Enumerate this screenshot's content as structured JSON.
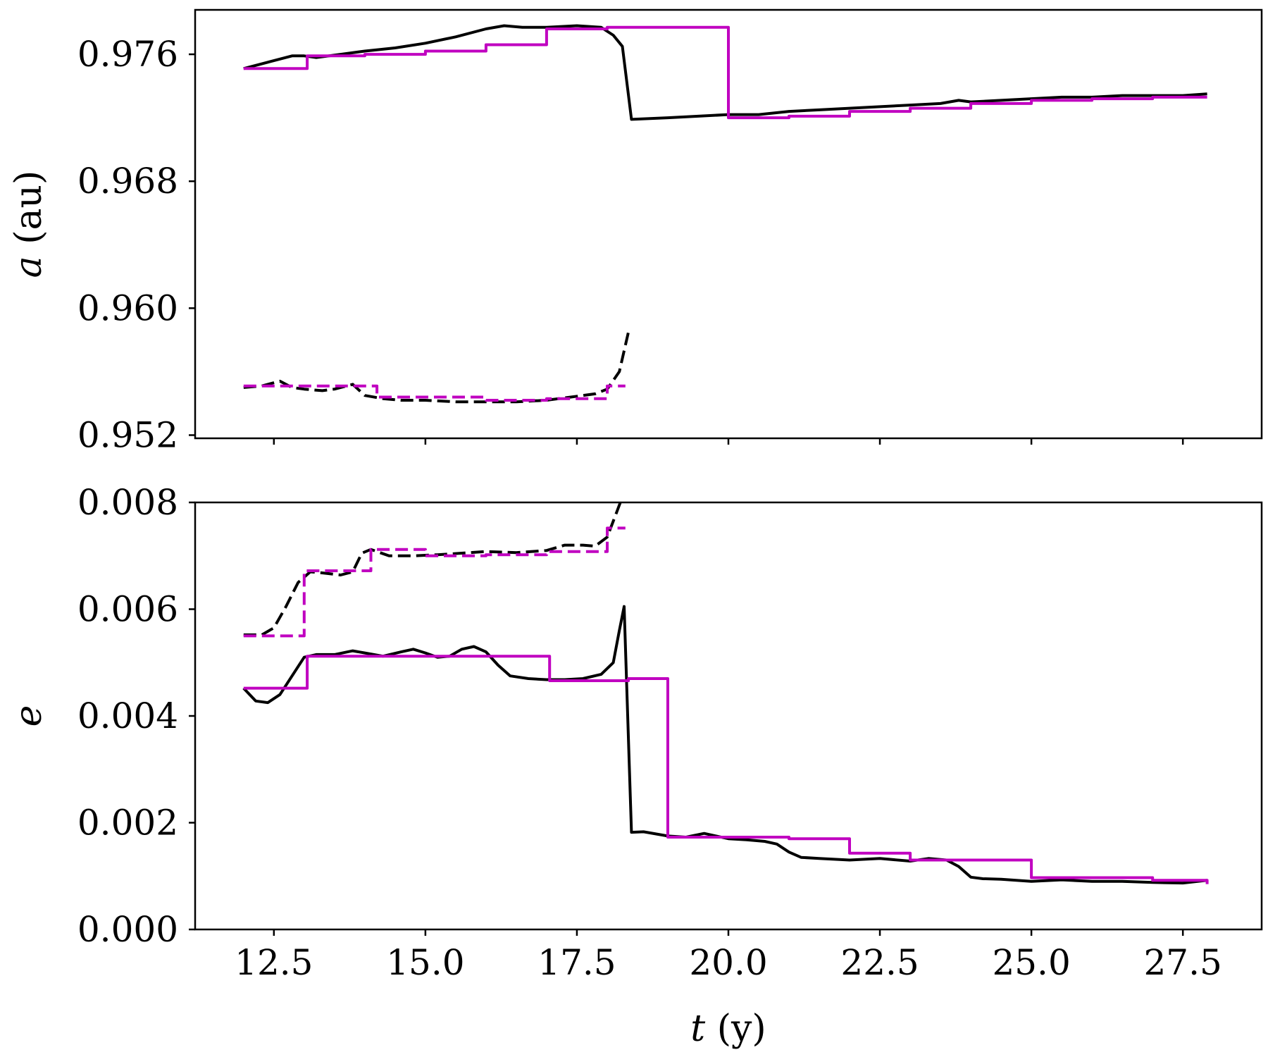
{
  "chart_data": [
    {
      "type": "line",
      "panel": "top",
      "ylabel": {
        "var": "a",
        "unit": "(au)"
      },
      "xlim": [
        11.2,
        28.8
      ],
      "ylim": [
        0.9518,
        0.9788
      ],
      "yticks": [
        0.976,
        0.968,
        0.96,
        0.952
      ],
      "ytick_labels": [
        "0.976",
        "0.968",
        "0.960",
        "0.952"
      ],
      "xticks": [
        12.5,
        15.0,
        17.5,
        20.0,
        22.5,
        25.0,
        27.5
      ],
      "series": [
        {
          "style": "solid",
          "color": "#000000",
          "x": [
            12.0,
            12.4,
            12.8,
            13.0,
            13.2,
            13.6,
            14.0,
            14.5,
            15.0,
            15.5,
            16.0,
            16.3,
            16.6,
            17.0,
            17.5,
            17.9,
            18.1,
            18.25,
            18.4,
            19.0,
            19.5,
            20.0,
            20.5,
            21.0,
            21.5,
            22.0,
            22.5,
            23.0,
            23.5,
            23.8,
            24.0,
            24.5,
            25.0,
            25.5,
            26.0,
            26.5,
            27.0,
            27.5,
            27.9
          ],
          "y": [
            0.9751,
            0.9755,
            0.9759,
            0.9759,
            0.9758,
            0.976,
            0.9762,
            0.9764,
            0.9767,
            0.9771,
            0.9776,
            0.9778,
            0.9777,
            0.9777,
            0.9778,
            0.9777,
            0.9772,
            0.9765,
            0.9719,
            0.972,
            0.9721,
            0.9722,
            0.9722,
            0.9724,
            0.9725,
            0.9726,
            0.9727,
            0.9728,
            0.9729,
            0.9731,
            0.973,
            0.9731,
            0.9732,
            0.9733,
            0.9733,
            0.9734,
            0.9734,
            0.9734,
            0.9735
          ]
        },
        {
          "style": "solid",
          "color": "#c000c0",
          "step": true,
          "x": [
            12.0,
            13.05,
            14.0,
            15.0,
            16.0,
            17.0,
            18.0,
            19.0,
            20.0,
            21.0,
            22.0,
            23.0,
            24.0,
            25.0,
            26.0,
            27.0,
            27.9
          ],
          "y": [
            0.9751,
            0.9759,
            0.976,
            0.9762,
            0.9766,
            0.9776,
            0.9777,
            0.9777,
            0.972,
            0.9721,
            0.9724,
            0.9726,
            0.9729,
            0.9731,
            0.9732,
            0.9733,
            0.9733
          ]
        },
        {
          "style": "dashed",
          "color": "#000000",
          "x": [
            12.0,
            12.3,
            12.6,
            12.8,
            13.0,
            13.3,
            13.5,
            13.8,
            14.0,
            14.3,
            14.6,
            15.0,
            15.5,
            16.0,
            16.5,
            17.0,
            17.4,
            17.8,
            18.0,
            18.2,
            18.35
          ],
          "y": [
            0.955,
            0.9551,
            0.9554,
            0.955,
            0.9549,
            0.9548,
            0.9549,
            0.9552,
            0.9545,
            0.9543,
            0.9542,
            0.9542,
            0.9541,
            0.9541,
            0.9541,
            0.9542,
            0.9544,
            0.9546,
            0.9549,
            0.956,
            0.9585
          ]
        },
        {
          "style": "dashed",
          "color": "#c000c0",
          "step": true,
          "x": [
            12.0,
            14.0,
            14.2,
            16.0,
            17.0,
            18.0,
            18.3
          ],
          "y": [
            0.9551,
            0.9551,
            0.9544,
            0.9542,
            0.9543,
            0.9551,
            0.9551
          ]
        }
      ]
    },
    {
      "type": "line",
      "panel": "bottom",
      "ylabel": {
        "var": "e",
        "unit": ""
      },
      "xlabel": {
        "var": "t",
        "unit": "(y)"
      },
      "xlim": [
        11.2,
        28.8
      ],
      "ylim": [
        0.0,
        0.008
      ],
      "yticks": [
        0.0,
        0.002,
        0.004,
        0.006,
        0.008
      ],
      "ytick_labels": [
        "0.000",
        "0.002",
        "0.004",
        "0.006",
        "0.008"
      ],
      "xticks": [
        12.5,
        15.0,
        17.5,
        20.0,
        22.5,
        25.0,
        27.5
      ],
      "xtick_labels": [
        "12.5",
        "15.0",
        "17.5",
        "20.0",
        "22.5",
        "25.0",
        "27.5"
      ],
      "series": [
        {
          "style": "solid",
          "color": "#000000",
          "x": [
            12.0,
            12.2,
            12.4,
            12.6,
            12.8,
            13.0,
            13.2,
            13.5,
            13.8,
            14.0,
            14.3,
            14.6,
            14.8,
            15.0,
            15.2,
            15.4,
            15.6,
            15.8,
            16.0,
            16.2,
            16.4,
            16.7,
            17.0,
            17.3,
            17.6,
            17.9,
            18.1,
            18.2,
            18.28,
            18.4,
            18.6,
            19.0,
            19.3,
            19.6,
            20.0,
            20.3,
            20.6,
            20.8,
            21.0,
            21.2,
            21.5,
            22.0,
            22.5,
            23.0,
            23.3,
            23.6,
            23.8,
            24.0,
            24.2,
            24.5,
            25.0,
            25.5,
            26.0,
            26.5,
            27.0,
            27.5,
            27.9
          ],
          "y": [
            0.00452,
            0.00428,
            0.00425,
            0.0044,
            0.00475,
            0.0051,
            0.00515,
            0.00515,
            0.00522,
            0.00518,
            0.00512,
            0.0052,
            0.00525,
            0.00518,
            0.0051,
            0.00512,
            0.00525,
            0.0053,
            0.0052,
            0.00495,
            0.00475,
            0.0047,
            0.00468,
            0.00468,
            0.0047,
            0.00478,
            0.005,
            0.0056,
            0.00605,
            0.00182,
            0.00183,
            0.00175,
            0.00173,
            0.0018,
            0.0017,
            0.00168,
            0.00165,
            0.0016,
            0.00145,
            0.00135,
            0.00133,
            0.0013,
            0.00133,
            0.00128,
            0.00133,
            0.0013,
            0.00118,
            0.00098,
            0.00095,
            0.00094,
            0.0009,
            0.00093,
            0.0009,
            0.0009,
            0.00088,
            0.00087,
            0.00092
          ]
        },
        {
          "style": "solid",
          "color": "#c000c0",
          "step": true,
          "x": [
            12.0,
            13.05,
            17.05,
            18.35,
            19.0,
            20.0,
            21.0,
            22.0,
            23.0,
            24.0,
            25.0,
            27.0,
            27.9
          ],
          "y": [
            0.00452,
            0.00512,
            0.00466,
            0.0047,
            0.00173,
            0.00173,
            0.0017,
            0.00143,
            0.0013,
            0.0013,
            0.00097,
            0.00092,
            0.00085
          ]
        },
        {
          "style": "dashed",
          "color": "#000000",
          "x": [
            12.0,
            12.3,
            12.5,
            12.7,
            12.9,
            13.1,
            13.3,
            13.6,
            13.8,
            13.95,
            14.1,
            14.4,
            14.8,
            15.2,
            15.6,
            16.0,
            16.5,
            17.0,
            17.3,
            17.6,
            17.8,
            18.0,
            18.1,
            18.25
          ],
          "y": [
            0.00552,
            0.00552,
            0.00565,
            0.00605,
            0.0065,
            0.0067,
            0.00668,
            0.00664,
            0.0067,
            0.00705,
            0.00712,
            0.007,
            0.007,
            0.00702,
            0.00705,
            0.00708,
            0.00706,
            0.0071,
            0.0072,
            0.0072,
            0.00718,
            0.00735,
            0.00765,
            0.0081
          ]
        },
        {
          "style": "dashed",
          "color": "#c000c0",
          "step": true,
          "x": [
            12.0,
            13.0,
            14.1,
            15.0,
            16.0,
            17.0,
            18.0,
            18.3
          ],
          "y": [
            0.0055,
            0.00672,
            0.00712,
            0.007,
            0.00702,
            0.00708,
            0.00752,
            0.00752
          ]
        }
      ]
    }
  ]
}
